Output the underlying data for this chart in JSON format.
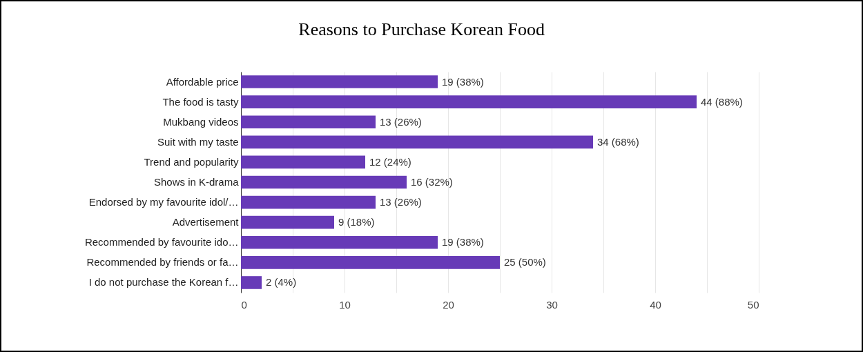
{
  "chart_data": {
    "type": "bar",
    "orientation": "horizontal",
    "title": "Reasons to Purchase Korean Food",
    "categories": [
      "Affordable price",
      "The food is tasty",
      "Mukbang videos",
      "Suit with my taste",
      "Trend and popularity",
      "Shows in K-drama",
      "Endorsed by my favourite idol/…",
      "Advertisement",
      "Recommended by favourite ido…",
      "Recommended by friends or fa…",
      "I do not purchase the Korean f…"
    ],
    "values": [
      19,
      44,
      13,
      34,
      12,
      16,
      13,
      9,
      19,
      25,
      2
    ],
    "value_labels": [
      "19 (38%)",
      "44 (88%)",
      "13 (26%)",
      "34 (68%)",
      "12 (24%)",
      "16 (32%)",
      "13 (26%)",
      "9 (18%)",
      "19 (38%)",
      "25 (50%)",
      "2 (4%)"
    ],
    "color": "#673ab7",
    "xlim": [
      0,
      50
    ],
    "xticks": [
      0,
      {
        "value": 5,
        "label": null
      },
      10,
      {
        "value": 15,
        "label": null
      },
      20,
      {
        "value": 25,
        "label": null
      },
      30,
      {
        "value": 35,
        "label": null
      },
      40,
      {
        "value": 45,
        "label": null
      },
      50
    ],
    "grid": "x"
  }
}
